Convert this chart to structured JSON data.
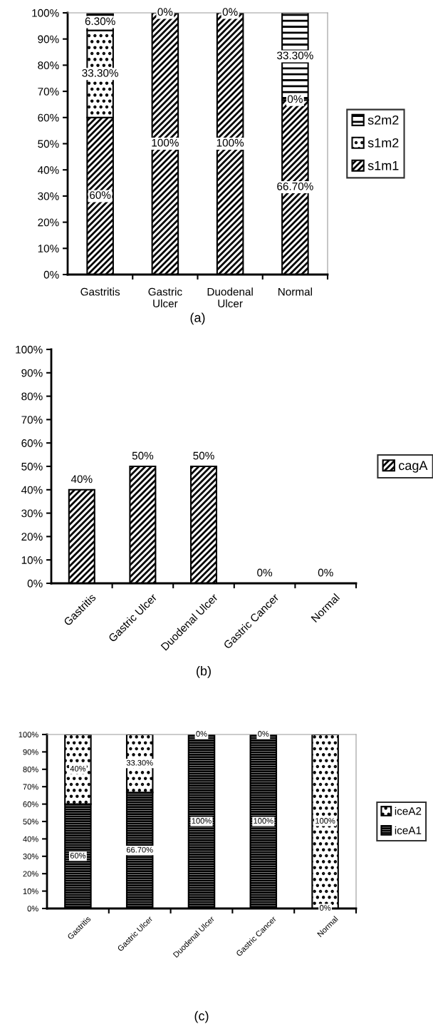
{
  "chart_data": [
    {
      "type": "bar",
      "stacked": true,
      "xlabel": "(a)",
      "categories": [
        "Gastritis",
        "Gastric Ulcer",
        "Duodenal Ulcer",
        "Normal"
      ],
      "series": [
        {
          "name": "s1m1",
          "color": "#000000",
          "values": [
            60,
            100,
            100,
            66.7
          ],
          "value_labels": [
            "60%",
            "100%",
            "100%",
            "66.70%"
          ]
        },
        {
          "name": "s1m2",
          "color": "#000000",
          "values": [
            33.3,
            0,
            0,
            0
          ],
          "value_labels": [
            "33.30%",
            "0%",
            "0%",
            "0%"
          ]
        },
        {
          "name": "s2m2",
          "color": "#000000",
          "values": [
            6.3,
            0,
            0,
            33.3
          ],
          "value_labels": [
            "6.30%",
            null,
            null,
            "33.30%"
          ]
        }
      ],
      "ylim": [
        0,
        100
      ],
      "yticks": [
        {
          "value": 0,
          "label": "0%"
        },
        {
          "value": 10,
          "label": "10%"
        },
        {
          "value": 20,
          "label": "20%"
        },
        {
          "value": 30,
          "label": "30%"
        },
        {
          "value": 40,
          "label": "40%"
        },
        {
          "value": 50,
          "label": "50%"
        },
        {
          "value": 60,
          "label": "60%"
        },
        {
          "value": 70,
          "label": "70%"
        },
        {
          "value": 80,
          "label": "80%"
        },
        {
          "value": 90,
          "label": "90%"
        },
        {
          "value": 100,
          "label": "100%"
        }
      ],
      "legend": "right",
      "grid": false
    },
    {
      "type": "bar",
      "xlabel": "(b)",
      "categories": [
        "Gastritis",
        "Gastric Ulcer",
        "Duodenal Ulcer",
        "Gastric Cancer",
        "Normal"
      ],
      "series": [
        {
          "name": "cagA",
          "color": "#000000",
          "values": [
            40,
            50,
            50,
            0,
            0
          ],
          "value_labels": [
            "40%",
            "50%",
            "50%",
            "0%",
            "0%"
          ]
        }
      ],
      "ylim": [
        0,
        100
      ],
      "yticks": [
        {
          "value": 0,
          "label": "0%"
        },
        {
          "value": 10,
          "label": "10%"
        },
        {
          "value": 20,
          "label": "20%"
        },
        {
          "value": 30,
          "label": "30%"
        },
        {
          "value": 40,
          "label": "40%"
        },
        {
          "value": 50,
          "label": "50%"
        },
        {
          "value": 60,
          "label": "60%"
        },
        {
          "value": 70,
          "label": "70%"
        },
        {
          "value": 80,
          "label": "80%"
        },
        {
          "value": 90,
          "label": "90%"
        },
        {
          "value": 100,
          "label": "100%"
        }
      ],
      "legend": "right",
      "grid": false
    },
    {
      "type": "bar",
      "stacked": true,
      "xlabel": "(c)",
      "categories": [
        "Gastritis",
        "Gastric Ulcer",
        "Duodenal Ulcer",
        "Gastric Cancer",
        "Normal"
      ],
      "series": [
        {
          "name": "iceA1",
          "color": "#000000",
          "values": [
            60,
            66.7,
            100,
            100,
            0
          ],
          "value_labels": [
            "60%",
            "66.70%",
            "100%",
            "100%",
            "0%"
          ]
        },
        {
          "name": "iceA2",
          "color": "#000000",
          "values": [
            40,
            33.3,
            0,
            0,
            100
          ],
          "value_labels": [
            "40%",
            "33.30%",
            "0%",
            "0%",
            "100%"
          ]
        }
      ],
      "ylim": [
        0,
        100
      ],
      "yticks": [
        {
          "value": 0,
          "label": "0%"
        },
        {
          "value": 10,
          "label": "10%"
        },
        {
          "value": 20,
          "label": "20%"
        },
        {
          "value": 30,
          "label": "30%"
        },
        {
          "value": 40,
          "label": "40%"
        },
        {
          "value": 50,
          "label": "50%"
        },
        {
          "value": 60,
          "label": "60%"
        },
        {
          "value": 70,
          "label": "70%"
        },
        {
          "value": 80,
          "label": "80%"
        },
        {
          "value": 90,
          "label": "90%"
        },
        {
          "value": 100,
          "label": "100%"
        }
      ],
      "legend": "right",
      "grid": false
    }
  ]
}
